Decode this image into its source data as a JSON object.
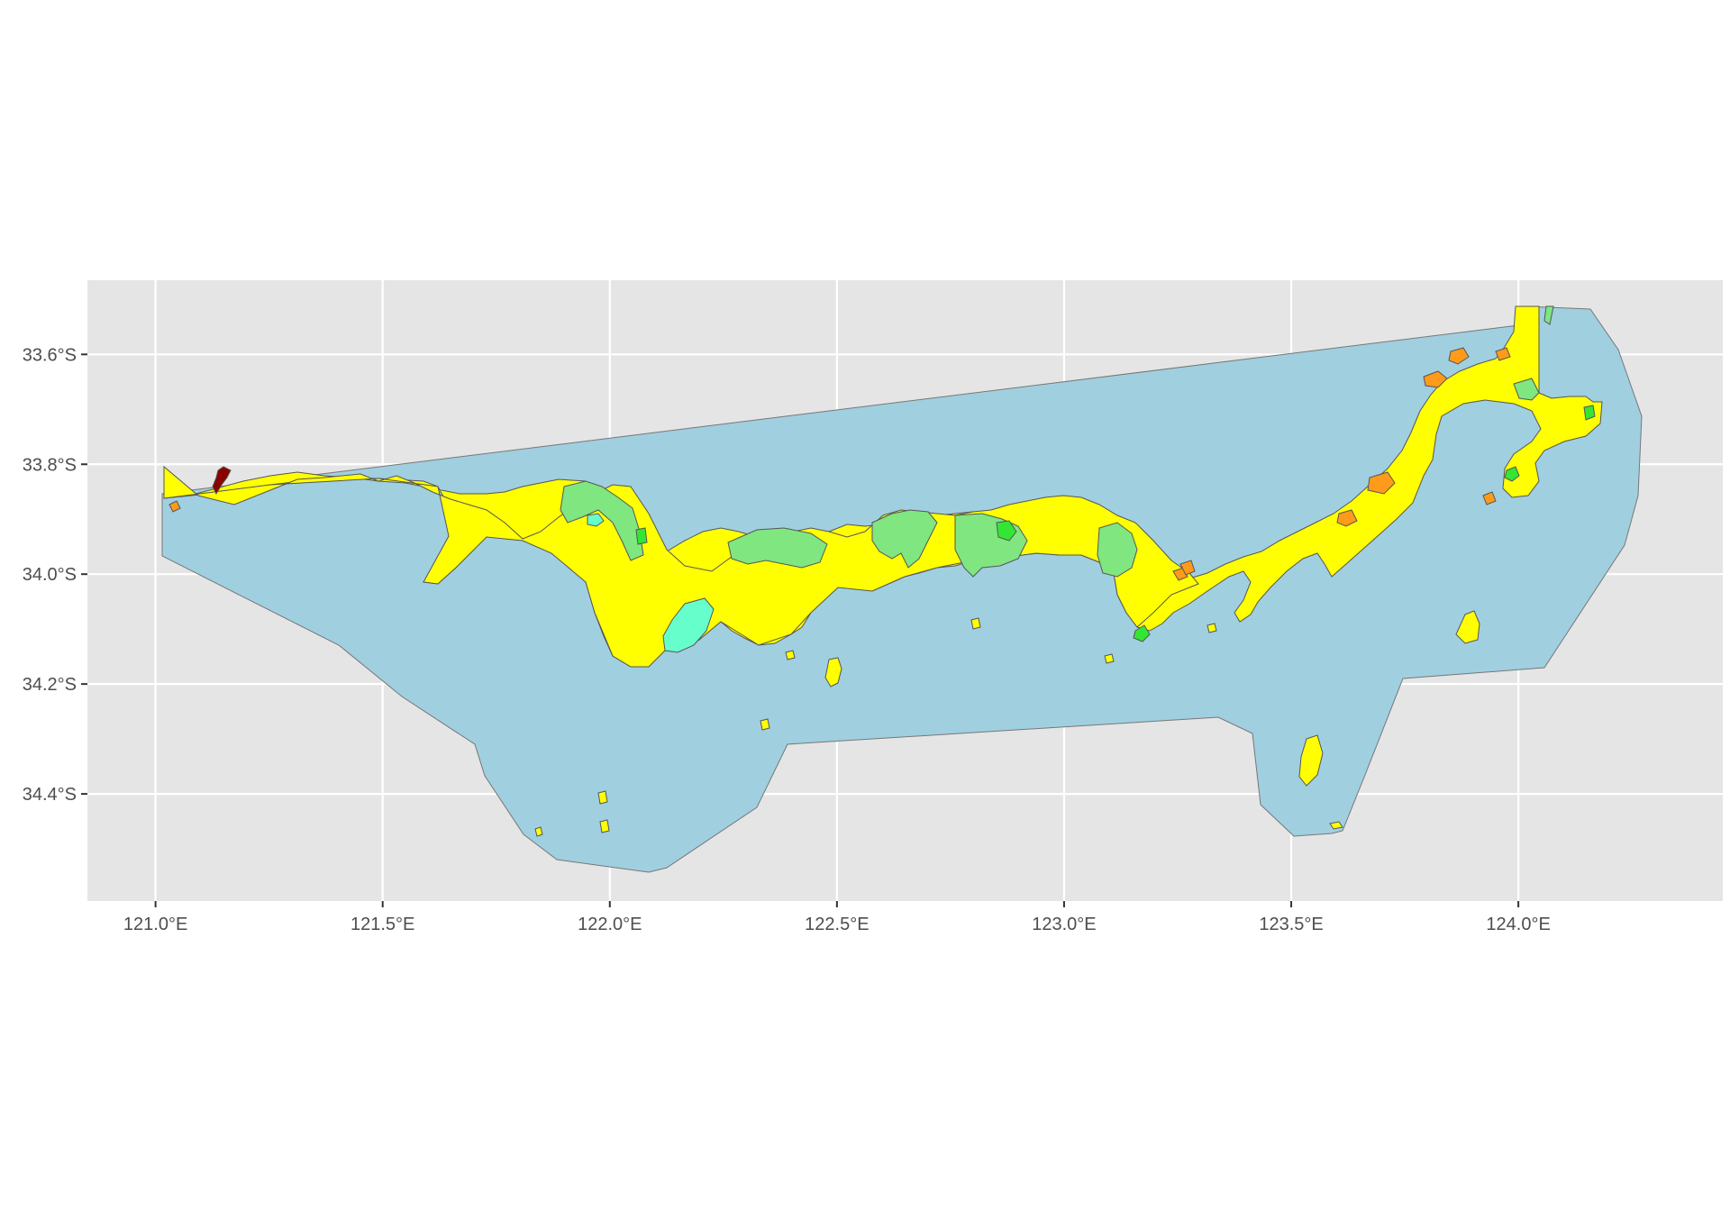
{
  "map": {
    "x_axis": {
      "range": [
        120.85,
        124.45
      ],
      "ticks": [
        {
          "value": 121.0,
          "label": "121.0°E"
        },
        {
          "value": 121.5,
          "label": "121.5°E"
        },
        {
          "value": 122.0,
          "label": "122.0°E"
        },
        {
          "value": 122.5,
          "label": "122.5°E"
        },
        {
          "value": 123.0,
          "label": "123.0°E"
        },
        {
          "value": 123.5,
          "label": "123.5°E"
        },
        {
          "value": 124.0,
          "label": "124.0°E"
        }
      ]
    },
    "y_axis": {
      "range": [
        -34.595,
        -33.465
      ],
      "ticks": [
        {
          "value": -33.6,
          "label": "33.6°S"
        },
        {
          "value": -33.8,
          "label": "33.8°S"
        },
        {
          "value": -34.0,
          "label": "34.0°S"
        },
        {
          "value": -34.2,
          "label": "34.2°S"
        },
        {
          "value": -34.4,
          "label": "34.4°S"
        }
      ]
    },
    "grid": true,
    "colors": {
      "panel": "#e5e5e5",
      "grid": "#ffffff",
      "ocean": "#a0cfe0",
      "coastal": "#ffff00",
      "light_green": "#80e680",
      "green": "#33e633",
      "orange": "#ff9a1a",
      "aqua": "#66ffcc",
      "dark_red": "#8b0000",
      "outline": "#4d4d4d"
    }
  }
}
